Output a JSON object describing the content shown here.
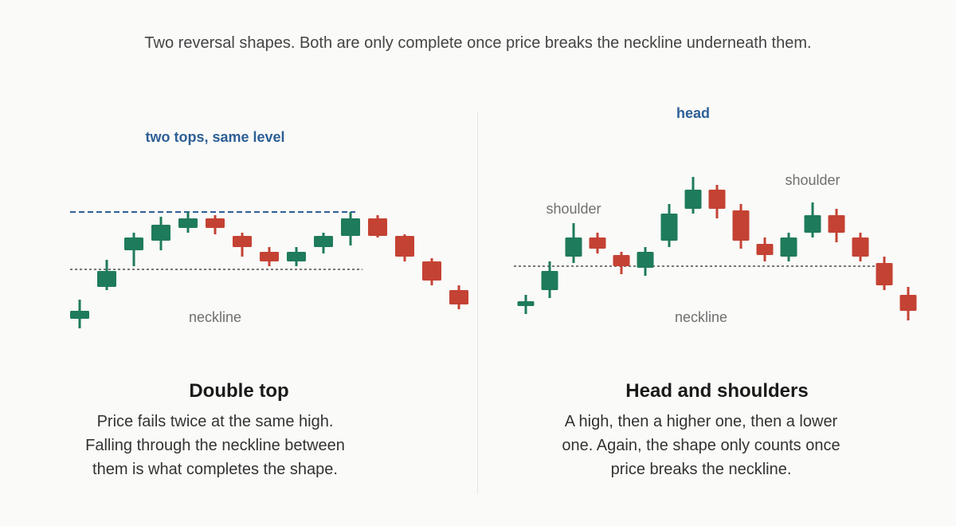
{
  "intro": "Two reversal shapes. Both are only complete once price breaks the neckline underneath them.",
  "colors": {
    "bull": "#1e7b5b",
    "bear": "#c44233",
    "blue_line": "#2e5f96",
    "neckline": "#777777"
  },
  "patterns": {
    "double_top": {
      "title": "Double top",
      "description": "Price fails twice at the same high. Falling through the neckline between them is what completes the shape.",
      "annotations": {
        "tops": "two tops, same level",
        "neckline": "neckline"
      },
      "neckline_level": 51,
      "tops_level": 87,
      "candles": [
        {
          "open": 20,
          "close": 25,
          "high": 32,
          "low": 14
        },
        {
          "open": 40,
          "close": 50,
          "high": 57,
          "low": 38
        },
        {
          "open": 63,
          "close": 71,
          "high": 74,
          "low": 53
        },
        {
          "open": 69,
          "close": 79,
          "high": 84,
          "low": 63
        },
        {
          "open": 77,
          "close": 83,
          "high": 87,
          "low": 74
        },
        {
          "open": 83,
          "close": 77,
          "high": 85,
          "low": 73
        },
        {
          "open": 72,
          "close": 65,
          "high": 74,
          "low": 59
        },
        {
          "open": 62,
          "close": 56,
          "high": 65,
          "low": 53
        },
        {
          "open": 56,
          "close": 62,
          "high": 65,
          "low": 53
        },
        {
          "open": 65,
          "close": 72,
          "high": 74,
          "low": 61
        },
        {
          "open": 72,
          "close": 83,
          "high": 87,
          "low": 66
        },
        {
          "open": 83,
          "close": 72,
          "high": 85,
          "low": 71
        },
        {
          "open": 72,
          "close": 59,
          "high": 73,
          "low": 56
        },
        {
          "open": 56,
          "close": 44,
          "high": 58,
          "low": 41
        },
        {
          "open": 38,
          "close": 29,
          "high": 41,
          "low": 26
        }
      ]
    },
    "head_and_shoulders": {
      "title": "Head and shoulders",
      "description": "A high, then a higher one, then a lower one. Again, the shape only counts once price breaks the neckline.",
      "annotations": {
        "head": "head",
        "left_shoulder": "shoulder",
        "right_shoulder": "shoulder",
        "neckline": "neckline"
      },
      "neckline_level": 53,
      "candles": [
        {
          "open": 28,
          "close": 31,
          "high": 35,
          "low": 23
        },
        {
          "open": 38,
          "close": 50,
          "high": 56,
          "low": 33
        },
        {
          "open": 59,
          "close": 71,
          "high": 80,
          "low": 55
        },
        {
          "open": 71,
          "close": 64,
          "high": 74,
          "low": 61
        },
        {
          "open": 60,
          "close": 53,
          "high": 62,
          "low": 48
        },
        {
          "open": 52,
          "close": 62,
          "high": 65,
          "low": 47
        },
        {
          "open": 69,
          "close": 86,
          "high": 92,
          "low": 65
        },
        {
          "open": 89,
          "close": 101,
          "high": 109,
          "low": 86
        },
        {
          "open": 101,
          "close": 89,
          "high": 104,
          "low": 83
        },
        {
          "open": 88,
          "close": 69,
          "high": 92,
          "low": 64
        },
        {
          "open": 67,
          "close": 60,
          "high": 71,
          "low": 56
        },
        {
          "open": 59,
          "close": 71,
          "high": 74,
          "low": 56
        },
        {
          "open": 74,
          "close": 85,
          "high": 93,
          "low": 71
        },
        {
          "open": 85,
          "close": 74,
          "high": 89,
          "low": 68
        },
        {
          "open": 71,
          "close": 59,
          "high": 74,
          "low": 56
        },
        {
          "open": 55,
          "close": 41,
          "high": 59,
          "low": 38
        },
        {
          "open": 35,
          "close": 25,
          "high": 40,
          "low": 19
        }
      ]
    }
  }
}
